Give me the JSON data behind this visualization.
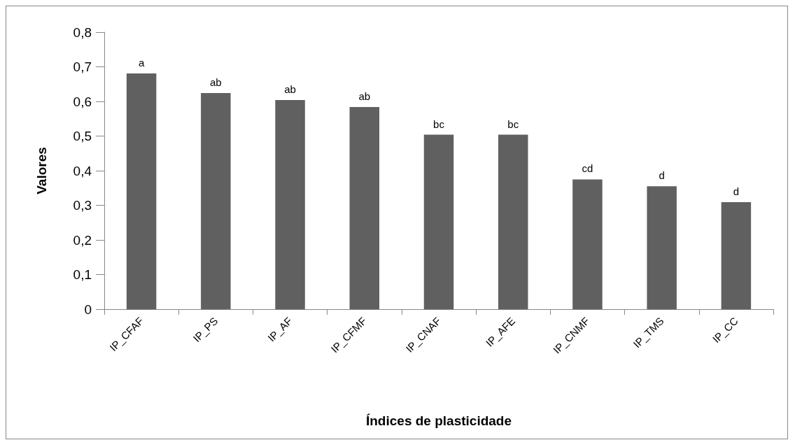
{
  "chart_data": {
    "type": "bar",
    "xlabel": "Índices de plasticidade",
    "ylabel": "Valores",
    "categories": [
      "IP_CFAF",
      "IP_PS",
      "IP_AF",
      "IP_CFMF",
      "IP_CNAF",
      "IP_AFE",
      "IP_CNMF",
      "IP_TMS",
      "IP_CC"
    ],
    "values": [
      0.681,
      0.624,
      0.604,
      0.584,
      0.504,
      0.504,
      0.375,
      0.355,
      0.309
    ],
    "value_labels": [
      "a",
      "ab",
      "ab",
      "ab",
      "bc",
      "bc",
      "cd",
      "d",
      "d"
    ],
    "color": "#606060",
    "ylim": [
      0,
      0.8
    ],
    "yticks": [
      0,
      {
        "value": 0.1,
        "label": "0,1"
      },
      {
        "value": 0.2,
        "label": "0,2"
      },
      {
        "value": 0.3,
        "label": "0,3"
      },
      {
        "value": 0.4,
        "label": "0,4"
      },
      {
        "value": 0.5,
        "label": "0,5"
      },
      {
        "value": 0.6,
        "label": "0,6"
      },
      {
        "value": 0.7,
        "label": "0,7"
      },
      {
        "value": 0.8,
        "label": "0,8"
      }
    ],
    "grid": false
  }
}
